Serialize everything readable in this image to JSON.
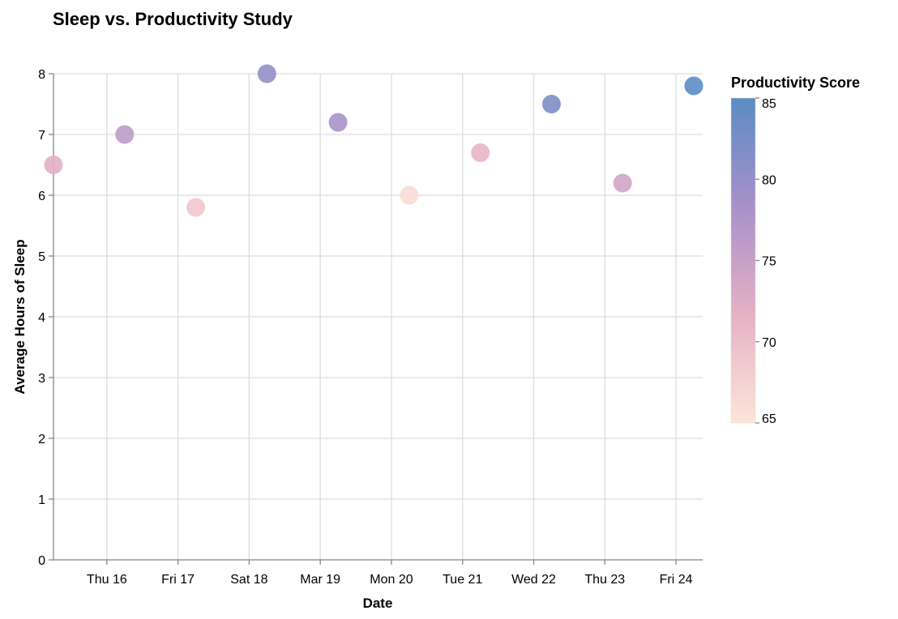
{
  "chart_data": {
    "type": "scatter",
    "title": "Sleep vs. Productivity Study",
    "xlabel": "Date",
    "ylabel": "Average Hours of Sleep",
    "x_ticks": [
      "Thu 16",
      "Fri 17",
      "Sat 18",
      "Mar 19",
      "Mon 20",
      "Tue 21",
      "Wed 22",
      "Thu 23",
      "Fri 24"
    ],
    "y_ticks": [
      0,
      1,
      2,
      3,
      4,
      5,
      6,
      7,
      8
    ],
    "ylim": [
      0,
      8
    ],
    "xlim": [
      "2023-03-15T06:00",
      "2023-03-24T09:00"
    ],
    "grid": true,
    "legend": {
      "title": "Productivity Score",
      "type": "gradient",
      "position": "right",
      "domain": [
        65,
        85
      ],
      "ticks": [
        85,
        80,
        75,
        70,
        65
      ],
      "colors": [
        "#fde5d9",
        "#e6b1c5",
        "#a790c9",
        "#5b8cc4"
      ]
    },
    "points": [
      {
        "date": "2023-03-15T06:00",
        "sleep": 6.5,
        "productivity": 72
      },
      {
        "date": "2023-03-16T06:00",
        "sleep": 7.0,
        "productivity": 76
      },
      {
        "date": "2023-03-17T06:00",
        "sleep": 5.8,
        "productivity": 69
      },
      {
        "date": "2023-03-18T06:00",
        "sleep": 8.0,
        "productivity": 80
      },
      {
        "date": "2023-03-19T06:00",
        "sleep": 7.2,
        "productivity": 78
      },
      {
        "date": "2023-03-20T06:00",
        "sleep": 6.0,
        "productivity": 66
      },
      {
        "date": "2023-03-21T06:00",
        "sleep": 6.7,
        "productivity": 71
      },
      {
        "date": "2023-03-22T06:00",
        "sleep": 7.5,
        "productivity": 82
      },
      {
        "date": "2023-03-23T06:00",
        "sleep": 6.2,
        "productivity": 74
      },
      {
        "date": "2023-03-24T06:00",
        "sleep": 7.8,
        "productivity": 85
      }
    ]
  }
}
